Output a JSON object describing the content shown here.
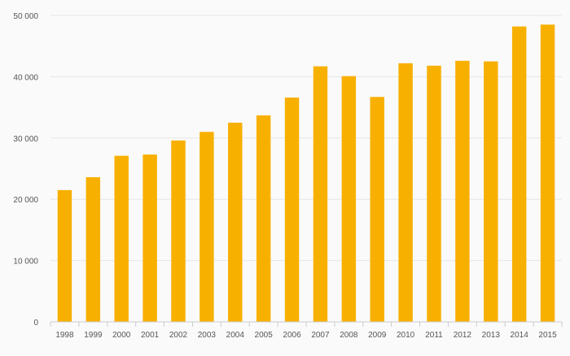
{
  "chart_data": {
    "type": "bar",
    "categories": [
      "1998",
      "1999",
      "2000",
      "2001",
      "2002",
      "2003",
      "2004",
      "2005",
      "2006",
      "2007",
      "2008",
      "2009",
      "2010",
      "2011",
      "2012",
      "2013",
      "2014",
      "2015"
    ],
    "values": [
      21500,
      23600,
      27100,
      27300,
      29600,
      31000,
      32500,
      33700,
      36600,
      41700,
      40100,
      36700,
      42200,
      41800,
      42600,
      42500,
      48200,
      48500
    ],
    "ylim": [
      0,
      50000
    ],
    "yticks": [
      0,
      10000,
      20000,
      30000,
      40000,
      50000
    ],
    "ytick_labels": [
      "0",
      "10 000",
      "20 000",
      "30 000",
      "40 000",
      "50 000"
    ],
    "grid": true,
    "legend": "none",
    "colors": {
      "bar": "#f8b000",
      "grid": "#e6e6e6",
      "axis": "#cccccc",
      "text": "#555555",
      "background": "#fafafa"
    }
  }
}
